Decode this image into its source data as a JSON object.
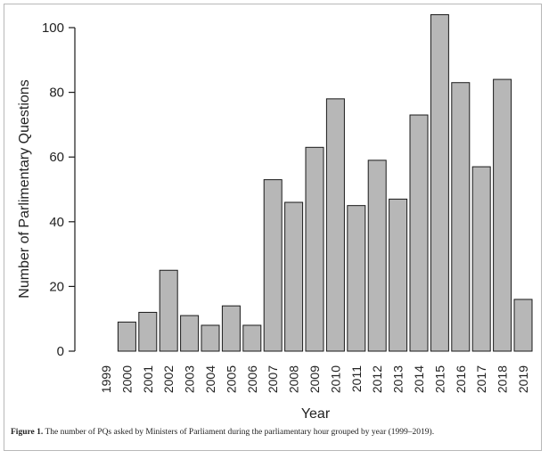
{
  "chart_data": {
    "type": "bar",
    "title": "",
    "xlabel": "Year",
    "ylabel": "Number of Parlimentary Questions",
    "categories": [
      "1999",
      "2000",
      "2001",
      "2002",
      "2003",
      "2004",
      "2005",
      "2006",
      "2007",
      "2008",
      "2009",
      "2010",
      "2011",
      "2012",
      "2013",
      "2014",
      "2015",
      "2016",
      "2017",
      "2018",
      "2019"
    ],
    "values": [
      0,
      9,
      12,
      25,
      11,
      8,
      14,
      8,
      53,
      46,
      63,
      78,
      45,
      59,
      47,
      73,
      104,
      83,
      57,
      84,
      16
    ],
    "yticks": [
      0,
      20,
      40,
      60,
      80,
      100
    ],
    "ylim": [
      0,
      104
    ],
    "bar_color": "#b7b7b7",
    "edge_color": "#1a1a1a",
    "grid": false
  },
  "caption": {
    "label": "Figure 1.",
    "text": " The number of PQs asked by Ministers of Parliament during the parliamentary hour grouped by year (1999–2019)."
  }
}
